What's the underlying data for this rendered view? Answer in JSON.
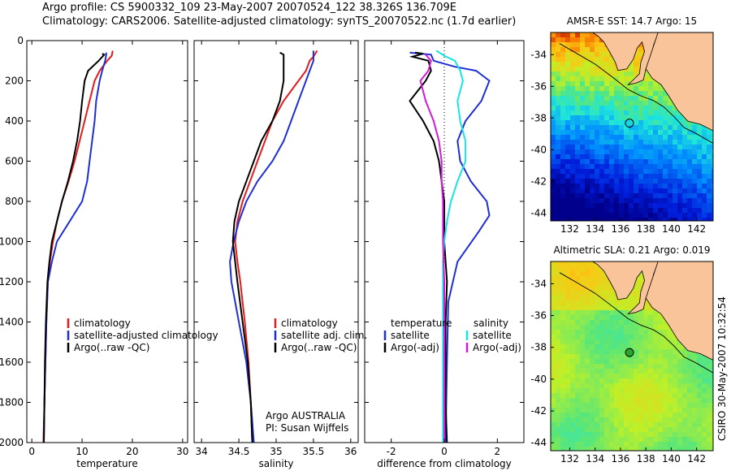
{
  "header": {
    "line1": "Argo profile: CS 5900332_109 23-May-2007 20070524_122 38.326S 136.709E",
    "line2": "Climatology: CARS2006. Satellite-adjusted climatology: synTS_20070522.nc (1.7d earlier)"
  },
  "side_label": "CSIRO 30-May-2007 10:32:54",
  "colors": {
    "red": "#e41a1c",
    "blue": "#1f2fd6",
    "black": "#000000",
    "cyan": "#19e3e6",
    "magenta": "#d11bd6",
    "land": "#f9c49a"
  },
  "chart_data": [
    {
      "type": "line",
      "xlabel": "temperature",
      "xticks": [
        0,
        10,
        20,
        30
      ],
      "xlim": [
        -1,
        31
      ],
      "yticks": [
        0,
        200,
        400,
        600,
        800,
        1000,
        1200,
        1400,
        1600,
        1800,
        2000
      ],
      "ylim": [
        2000,
        0
      ],
      "legend": [
        "climatology",
        "satellite-adjusted climatology",
        "Argo(..raw -QC)"
      ],
      "legend_placement": "lower-right",
      "series": [
        {
          "name": "climatology",
          "color": "red",
          "points": [
            [
              16.1,
              50
            ],
            [
              15.9,
              75
            ],
            [
              15.0,
              100
            ],
            [
              13.5,
              150
            ],
            [
              12.5,
              200
            ],
            [
              11.5,
              300
            ],
            [
              10.5,
              400
            ],
            [
              9.5,
              500
            ],
            [
              8.5,
              600
            ],
            [
              7.3,
              700
            ],
            [
              6.0,
              800
            ],
            [
              5.0,
              900
            ],
            [
              4.2,
              1000
            ],
            [
              3.6,
              1100
            ],
            [
              3.2,
              1200
            ],
            [
              2.9,
              1400
            ],
            [
              2.7,
              1600
            ],
            [
              2.5,
              1800
            ],
            [
              2.3,
              2000
            ]
          ]
        },
        {
          "name": "satellite-adjusted climatology",
          "color": "blue",
          "points": [
            [
              14.8,
              60
            ],
            [
              14.8,
              70
            ],
            [
              14.6,
              100
            ],
            [
              14.0,
              150
            ],
            [
              13.5,
              200
            ],
            [
              12.8,
              300
            ],
            [
              12.5,
              400
            ],
            [
              12.0,
              500
            ],
            [
              11.5,
              600
            ],
            [
              11.0,
              700
            ],
            [
              10.0,
              800
            ],
            [
              7.5,
              900
            ],
            [
              5.0,
              1000
            ],
            [
              4.0,
              1100
            ],
            [
              3.2,
              1200
            ],
            [
              2.9,
              1400
            ],
            [
              2.7,
              1600
            ],
            [
              2.5,
              1800
            ],
            [
              2.4,
              2000
            ]
          ]
        },
        {
          "name": "Argo(..raw -QC)",
          "color": "black",
          "points": [
            [
              14.0,
              65
            ],
            [
              14.4,
              70
            ],
            [
              13.3,
              100
            ],
            [
              11.2,
              150
            ],
            [
              10.5,
              200
            ],
            [
              10.0,
              300
            ],
            [
              9.6,
              400
            ],
            [
              9.0,
              500
            ],
            [
              8.2,
              600
            ],
            [
              7.2,
              700
            ],
            [
              6.0,
              800
            ],
            [
              5.0,
              900
            ],
            [
              4.0,
              1000
            ],
            [
              3.5,
              1100
            ],
            [
              3.1,
              1200
            ],
            [
              2.8,
              1400
            ],
            [
              2.6,
              1600
            ],
            [
              2.5,
              1800
            ],
            [
              2.4,
              2000
            ]
          ]
        }
      ]
    },
    {
      "type": "line",
      "xlabel": "salinity",
      "xticks": [
        34,
        34.5,
        35,
        35.5,
        36
      ],
      "xlim": [
        33.9,
        36.1
      ],
      "yticks": [
        0,
        200,
        400,
        600,
        800,
        1000,
        1200,
        1400,
        1600,
        1800,
        2000
      ],
      "ylim": [
        2000,
        0
      ],
      "legend": [
        "climatology",
        "satellite adj. clim.",
        "Argo(..raw -QC)"
      ],
      "legend_placement": "lower-right",
      "annotation": [
        "Argo AUSTRALIA",
        "PI: Susan Wijffels"
      ],
      "series": [
        {
          "name": "climatology",
          "color": "red",
          "points": [
            [
              35.55,
              50
            ],
            [
              35.5,
              80
            ],
            [
              35.45,
              100
            ],
            [
              35.4,
              150
            ],
            [
              35.3,
              200
            ],
            [
              35.1,
              300
            ],
            [
              34.95,
              400
            ],
            [
              34.85,
              500
            ],
            [
              34.75,
              600
            ],
            [
              34.65,
              700
            ],
            [
              34.55,
              800
            ],
            [
              34.48,
              900
            ],
            [
              34.45,
              1000
            ],
            [
              34.48,
              1100
            ],
            [
              34.52,
              1200
            ],
            [
              34.58,
              1400
            ],
            [
              34.63,
              1600
            ],
            [
              34.66,
              1800
            ],
            [
              34.68,
              2000
            ]
          ]
        },
        {
          "name": "satellite adj. clim.",
          "color": "blue",
          "points": [
            [
              35.5,
              50
            ],
            [
              35.5,
              80
            ],
            [
              35.5,
              100
            ],
            [
              35.45,
              150
            ],
            [
              35.4,
              200
            ],
            [
              35.3,
              300
            ],
            [
              35.2,
              400
            ],
            [
              35.1,
              500
            ],
            [
              34.95,
              600
            ],
            [
              34.75,
              700
            ],
            [
              34.6,
              800
            ],
            [
              34.5,
              900
            ],
            [
              34.43,
              1000
            ],
            [
              34.38,
              1100
            ],
            [
              34.4,
              1200
            ],
            [
              34.5,
              1400
            ],
            [
              34.6,
              1600
            ],
            [
              34.66,
              1800
            ],
            [
              34.7,
              2000
            ]
          ]
        },
        {
          "name": "Argo(..raw -QC)",
          "color": "black",
          "points": [
            [
              35.05,
              60
            ],
            [
              35.1,
              70
            ],
            [
              35.1,
              100
            ],
            [
              35.1,
              150
            ],
            [
              35.1,
              200
            ],
            [
              35.05,
              300
            ],
            [
              34.95,
              400
            ],
            [
              34.8,
              500
            ],
            [
              34.7,
              600
            ],
            [
              34.6,
              700
            ],
            [
              34.5,
              800
            ],
            [
              34.44,
              900
            ],
            [
              34.42,
              1000
            ],
            [
              34.45,
              1100
            ],
            [
              34.48,
              1200
            ],
            [
              34.55,
              1400
            ],
            [
              34.62,
              1600
            ],
            [
              34.66,
              1800
            ],
            [
              34.68,
              2000
            ]
          ]
        }
      ]
    },
    {
      "type": "line",
      "xlabel": "difference from climatology",
      "xticks": [
        -2,
        0,
        2
      ],
      "xlim": [
        -3,
        3
      ],
      "yticks": [
        0,
        200,
        400,
        600,
        800,
        1000,
        1200,
        1400,
        1600,
        1800,
        2000
      ],
      "ylim": [
        2000,
        0
      ],
      "legend_titles": [
        "temperature",
        "salinity"
      ],
      "legend": [
        "satellite",
        "Argo(-adj)",
        "satellite",
        "Argo(-adj)"
      ],
      "zero_line": true,
      "series": [
        {
          "name": "satellite",
          "group": "temperature",
          "color": "blue",
          "points": [
            [
              -1.3,
              60
            ],
            [
              -0.5,
              70
            ],
            [
              -0.4,
              100
            ],
            [
              0.4,
              130
            ],
            [
              1.2,
              150
            ],
            [
              1.5,
              180
            ],
            [
              1.7,
              200
            ],
            [
              1.4,
              300
            ],
            [
              0.8,
              400
            ],
            [
              0.5,
              500
            ],
            [
              0.6,
              600
            ],
            [
              1.0,
              700
            ],
            [
              1.6,
              800
            ],
            [
              1.7,
              870
            ],
            [
              1.3,
              950
            ],
            [
              0.5,
              1100
            ],
            [
              0.15,
              1300
            ],
            [
              0.1,
              1600
            ],
            [
              0.05,
              2000
            ]
          ]
        },
        {
          "name": "Argo(-adj)",
          "group": "temperature",
          "color": "black",
          "points": [
            [
              -1.1,
              60
            ],
            [
              -0.8,
              65
            ],
            [
              -1.2,
              80
            ],
            [
              -0.6,
              100
            ],
            [
              -0.5,
              150
            ],
            [
              -0.7,
              200
            ],
            [
              -1.0,
              250
            ],
            [
              -1.3,
              300
            ],
            [
              -0.8,
              400
            ],
            [
              -0.4,
              500
            ],
            [
              -0.2,
              600
            ],
            [
              -0.1,
              700
            ],
            [
              0.0,
              800
            ],
            [
              0.0,
              1000
            ],
            [
              0.1,
              1200
            ],
            [
              0.05,
              1400
            ],
            [
              0.05,
              1600
            ],
            [
              0.05,
              1800
            ],
            [
              0.1,
              2000
            ]
          ]
        },
        {
          "name": "satellite",
          "group": "salinity",
          "color": "cyan",
          "points": [
            [
              -0.3,
              50
            ],
            [
              0.0,
              75
            ],
            [
              0.4,
              100
            ],
            [
              0.6,
              150
            ],
            [
              0.7,
              200
            ],
            [
              0.5,
              300
            ],
            [
              0.6,
              400
            ],
            [
              0.8,
              500
            ],
            [
              0.8,
              600
            ],
            [
              0.5,
              700
            ],
            [
              0.25,
              800
            ],
            [
              0.1,
              900
            ],
            [
              0.0,
              1000
            ],
            [
              -0.05,
              1100
            ],
            [
              -0.05,
              1200
            ],
            [
              -0.05,
              1400
            ],
            [
              -0.05,
              1600
            ],
            [
              -0.05,
              1800
            ],
            [
              -0.05,
              2000
            ]
          ]
        },
        {
          "name": "Argo(-adj)",
          "group": "salinity",
          "color": "magenta",
          "points": [
            [
              -0.7,
              70
            ],
            [
              -0.5,
              100
            ],
            [
              -0.6,
              150
            ],
            [
              -0.9,
              200
            ],
            [
              -0.7,
              300
            ],
            [
              -0.4,
              400
            ],
            [
              -0.2,
              500
            ],
            [
              -0.1,
              600
            ],
            [
              -0.1,
              700
            ],
            [
              -0.05,
              800
            ],
            [
              -0.05,
              900
            ],
            [
              -0.05,
              1000
            ],
            [
              0.0,
              1200
            ],
            [
              0.0,
              1600
            ],
            [
              0.0,
              2000
            ]
          ]
        }
      ]
    },
    {
      "type": "heatmap",
      "title": "AMSR-E SST: 14.7 Argo: 15",
      "xticks": [
        132,
        134,
        136,
        138,
        140,
        142
      ],
      "xlim": [
        130.5,
        143.3
      ],
      "yticks": [
        -34,
        -36,
        -38,
        -40,
        -42,
        -44
      ],
      "ylim": [
        -44.5,
        -32.6
      ],
      "argo_location": [
        136.709,
        -38.326
      ],
      "field": "sea surface temperature"
    },
    {
      "type": "heatmap",
      "title": "Altimetric SLA: 0.21 Argo: 0.019",
      "xticks": [
        132,
        134,
        136,
        138,
        140,
        142
      ],
      "xlim": [
        130.5,
        143.3
      ],
      "yticks": [
        -34,
        -36,
        -38,
        -40,
        -42,
        -44
      ],
      "ylim": [
        -44.5,
        -32.6
      ],
      "argo_location": [
        136.709,
        -38.326
      ],
      "field": "sea level anomaly"
    }
  ]
}
